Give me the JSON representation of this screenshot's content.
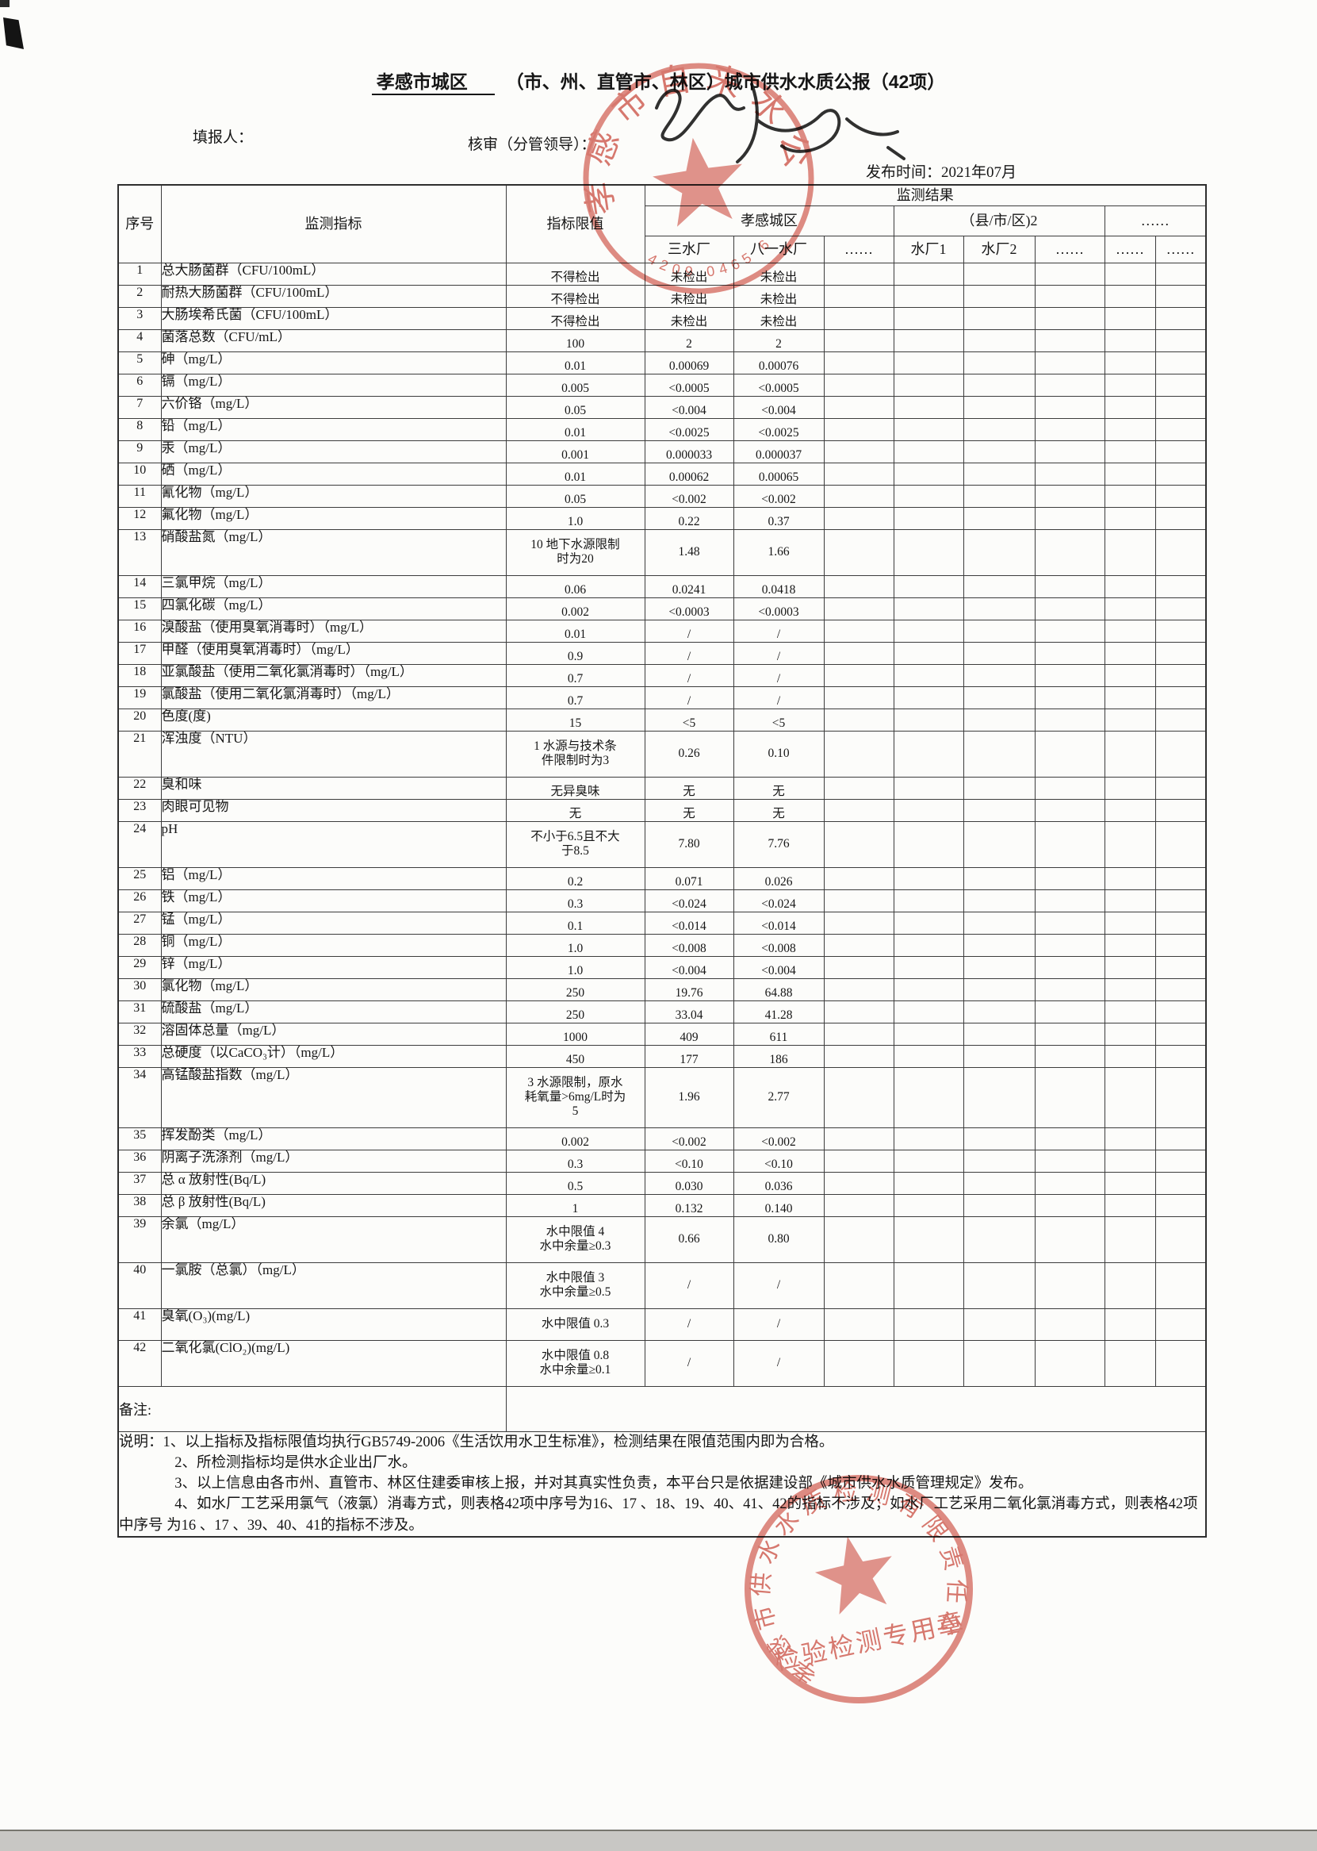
{
  "page": {
    "title_region": "孝感市城区",
    "title_rest": "（市、州、直管市、林区）城市供水水质公报（42项）",
    "filler_label": "填报人：",
    "reviewer_label": "核审（分管领导）：",
    "publish_label": "发布时间：2021年07月"
  },
  "table": {
    "headers": {
      "no": "序号",
      "indicator": "监测指标",
      "limit": "指标限值",
      "result": "监测结果",
      "group1": "孝感城区",
      "group2": "（县/市/区)2",
      "group3": "……",
      "sub": [
        "三水厂",
        "八一水厂",
        "……",
        "水厂1",
        "水厂2",
        "……",
        "……",
        "……"
      ]
    },
    "rows": [
      {
        "no": "1",
        "name": "总大肠菌群（CFU/100mL）",
        "limit": "不得检出",
        "v1": "未检出",
        "v2": "未检出"
      },
      {
        "no": "2",
        "name": "耐热大肠菌群（CFU/100mL）",
        "limit": "不得检出",
        "v1": "未检出",
        "v2": "未检出"
      },
      {
        "no": "3",
        "name": "大肠埃希氏菌（CFU/100mL）",
        "limit": "不得检出",
        "v1": "未检出",
        "v2": "未检出"
      },
      {
        "no": "4",
        "name": "菌落总数（CFU/mL）",
        "limit": "100",
        "v1": "2",
        "v2": "2"
      },
      {
        "no": "5",
        "name": "砷（mg/L）",
        "limit": "0.01",
        "v1": "0.00069",
        "v2": "0.00076"
      },
      {
        "no": "6",
        "name": "镉（mg/L）",
        "limit": "0.005",
        "v1": "<0.0005",
        "v2": "<0.0005"
      },
      {
        "no": "7",
        "name": "六价铬（mg/L）",
        "limit": "0.05",
        "v1": "<0.004",
        "v2": "<0.004"
      },
      {
        "no": "8",
        "name": "铅（mg/L）",
        "limit": "0.01",
        "v1": "<0.0025",
        "v2": "<0.0025"
      },
      {
        "no": "9",
        "name": "汞（mg/L）",
        "limit": "0.001",
        "v1": "0.000033",
        "v2": "0.000037"
      },
      {
        "no": "10",
        "name": "硒（mg/L）",
        "limit": "0.01",
        "v1": "0.00062",
        "v2": "0.00065"
      },
      {
        "no": "11",
        "name": "氰化物（mg/L）",
        "limit": "0.05",
        "v1": "<0.002",
        "v2": "<0.002"
      },
      {
        "no": "12",
        "name": "氟化物（mg/L）",
        "limit": "1.0",
        "v1": "0.22",
        "v2": "0.37"
      },
      {
        "no": "13",
        "name": "硝酸盐氮（mg/L）",
        "limit": "10 地下水源限制\n时为20",
        "v1": "1.48",
        "v2": "1.66",
        "h": 58
      },
      {
        "no": "14",
        "name": "三氯甲烷（mg/L）",
        "limit": "0.06",
        "v1": "0.0241",
        "v2": "0.0418"
      },
      {
        "no": "15",
        "name": "四氯化碳（mg/L）",
        "limit": "0.002",
        "v1": "<0.0003",
        "v2": "<0.0003"
      },
      {
        "no": "16",
        "name": "溴酸盐（使用臭氧消毒时）（mg/L）",
        "limit": "0.01",
        "v1": "/",
        "v2": "/"
      },
      {
        "no": "17",
        "name": "甲醛（使用臭氧消毒时）（mg/L）",
        "limit": "0.9",
        "v1": "/",
        "v2": "/"
      },
      {
        "no": "18",
        "name": "亚氯酸盐（使用二氧化氯消毒时）（mg/L）",
        "limit": "0.7",
        "v1": "/",
        "v2": "/"
      },
      {
        "no": "19",
        "name": "氯酸盐（使用二氧化氯消毒时）（mg/L）",
        "limit": "0.7",
        "v1": "/",
        "v2": "/"
      },
      {
        "no": "20",
        "name": "色度(度)",
        "limit": "15",
        "v1": "<5",
        "v2": "<5"
      },
      {
        "no": "21",
        "name": "浑浊度（NTU）",
        "limit": "1 水源与技术条\n件限制时为3",
        "v1": "0.26",
        "v2": "0.10",
        "h": 58
      },
      {
        "no": "22",
        "name": "臭和味",
        "limit": "无异臭味",
        "v1": "无",
        "v2": "无"
      },
      {
        "no": "23",
        "name": "肉眼可见物",
        "limit": "无",
        "v1": "无",
        "v2": "无"
      },
      {
        "no": "24",
        "name": "pH",
        "limit": "不小于6.5且不大\n于8.5",
        "v1": "7.80",
        "v2": "7.76",
        "h": 58
      },
      {
        "no": "25",
        "name": "铝（mg/L）",
        "limit": "0.2",
        "v1": "0.071",
        "v2": "0.026"
      },
      {
        "no": "26",
        "name": "铁（mg/L）",
        "limit": "0.3",
        "v1": "<0.024",
        "v2": "<0.024"
      },
      {
        "no": "27",
        "name": "锰（mg/L）",
        "limit": "0.1",
        "v1": "<0.014",
        "v2": "<0.014"
      },
      {
        "no": "28",
        "name": "铜（mg/L）",
        "limit": "1.0",
        "v1": "<0.008",
        "v2": "<0.008"
      },
      {
        "no": "29",
        "name": "锌（mg/L）",
        "limit": "1.0",
        "v1": "<0.004",
        "v2": "<0.004"
      },
      {
        "no": "30",
        "name": "氯化物（mg/L）",
        "limit": "250",
        "v1": "19.76",
        "v2": "64.88"
      },
      {
        "no": "31",
        "name": "硫酸盐（mg/L）",
        "limit": "250",
        "v1": "33.04",
        "v2": "41.28"
      },
      {
        "no": "32",
        "name": "溶固体总量（mg/L）",
        "limit": "1000",
        "v1": "409",
        "v2": "611"
      },
      {
        "no": "33",
        "name": "总硬度（以CaCO₃计）（mg/L）",
        "limit": "450",
        "v1": "177",
        "v2": "186"
      },
      {
        "no": "34",
        "name": "高锰酸盐指数（mg/L）",
        "limit": "3 水源限制，原水\n耗氧量>6mg/L时为\n5",
        "v1": "1.96",
        "v2": "2.77",
        "h": 76
      },
      {
        "no": "35",
        "name": "挥发酚类（mg/L）",
        "limit": "0.002",
        "v1": "<0.002",
        "v2": "<0.002"
      },
      {
        "no": "36",
        "name": "阴离子洗涤剂（mg/L）",
        "limit": "0.3",
        "v1": "<0.10",
        "v2": "<0.10"
      },
      {
        "no": "37",
        "name": "总 α 放射性(Bq/L)",
        "limit": "0.5",
        "v1": "0.030",
        "v2": "0.036"
      },
      {
        "no": "38",
        "name": "总 β 放射性(Bq/L)",
        "limit": "1",
        "v1": "0.132",
        "v2": "0.140"
      },
      {
        "no": "39",
        "name": "余氯（mg/L）",
        "limit": "水中限值 4\n水中余量≥0.3",
        "v1": "0.66",
        "v2": "0.80",
        "h": 58
      },
      {
        "no": "40",
        "name": "一氯胺（总氯）（mg/L）",
        "limit": "水中限值 3\n水中余量≥0.5",
        "v1": "/",
        "v2": "/",
        "h": 58
      },
      {
        "no": "41",
        "name": "臭氧(O₃)(mg/L)",
        "limit": "水中限值 0.3",
        "v1": "/",
        "v2": "/",
        "h": 40
      },
      {
        "no": "42",
        "name": "二氧化氯(ClO₂)(mg/L)",
        "limit": "水中限值 0.8\n水中余量≥0.1",
        "v1": "/",
        "v2": "/",
        "h": 58
      }
    ],
    "remark_label": "备注:",
    "notes": [
      "说明：1、以上指标及指标限值均执行GB5749-2006《生活饮用水卫生标准》，检测结果在限值范围内即为合格。",
      "2、所检测指标均是供水企业出厂水。",
      "3、以上信息由各市州、直管市、林区住建委审核上报，并对其真实性负责，本平台只是依据建设部《城市供水水质管理规定》发布。",
      "4、如水厂工艺采用氯气（液氯）消毒方式，则表格42项中序号为16、17 、18、19、40、41、42的指标不涉及；如水厂工艺采用二氧化氯消毒方式，则表格42项中序号 为16 、17 、39、40、41的指标不涉及。"
    ]
  },
  "stamps": {
    "top": {
      "ring_text": "孝感市自来水公司",
      "arc_digits": "4209 0465 6"
    },
    "bottom": {
      "ring_text": "孝感市供水水质检测有限责任公司",
      "title_text": "检验检测专用章"
    }
  },
  "colors": {
    "stamp_red": "#d05247",
    "ink_black": "#1a1a1a",
    "border": "#3c3c3c"
  }
}
